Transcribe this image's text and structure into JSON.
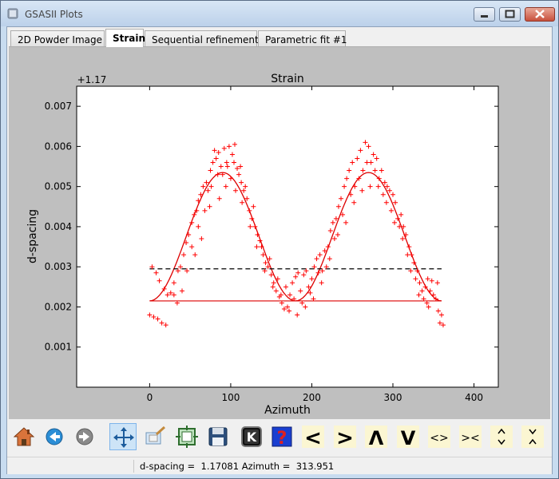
{
  "window": {
    "title": "GSASII Plots"
  },
  "tabs": [
    {
      "label": "2D Powder Image",
      "active": false
    },
    {
      "label": "Strain",
      "active": true
    },
    {
      "label": "Sequential refinement",
      "active": false
    },
    {
      "label": "Parametric fit #1",
      "active": false
    }
  ],
  "chart_data": {
    "type": "scatter",
    "title": "Strain",
    "xlabel": "Azimuth",
    "ylabel": "d-spacing",
    "offset_label": "+1.17",
    "xlim": [
      -90,
      430
    ],
    "ylim": [
      0.0,
      0.0075
    ],
    "x_ticks": [
      0,
      100,
      200,
      300,
      400
    ],
    "y_ticks": [
      0.001,
      0.002,
      0.003,
      0.004,
      0.005,
      0.006,
      0.007
    ],
    "x_tick_labels": [
      "0",
      "100",
      "200",
      "300",
      "400"
    ],
    "y_tick_labels": [
      "0.001",
      "0.002",
      "0.003",
      "0.004",
      "0.005",
      "0.006",
      "0.007"
    ],
    "grid": false,
    "colors": {
      "points": "#ff0000",
      "fit": "#dd0000",
      "reference": "#000000"
    },
    "series": [
      {
        "kind": "points",
        "marker": "+",
        "points": [
          [
            0,
            0.0018
          ],
          [
            5,
            0.00175
          ],
          [
            10,
            0.0017
          ],
          [
            15,
            0.0016
          ],
          [
            20,
            0.00155
          ],
          [
            3,
            0.003
          ],
          [
            8,
            0.00285
          ],
          [
            12,
            0.00265
          ],
          [
            18,
            0.00245
          ],
          [
            22,
            0.0023
          ],
          [
            26,
            0.00235
          ],
          [
            30,
            0.0026
          ],
          [
            35,
            0.0029
          ],
          [
            38,
            0.003
          ],
          [
            42,
            0.0033
          ],
          [
            45,
            0.0036
          ],
          [
            48,
            0.0038
          ],
          [
            52,
            0.0041
          ],
          [
            55,
            0.0043
          ],
          [
            58,
            0.0044
          ],
          [
            60,
            0.00465
          ],
          [
            63,
            0.0048
          ],
          [
            66,
            0.005
          ],
          [
            70,
            0.0051
          ],
          [
            72,
            0.0049
          ],
          [
            75,
            0.0054
          ],
          [
            78,
            0.0056
          ],
          [
            80,
            0.0059
          ],
          [
            82,
            0.0057
          ],
          [
            85,
            0.00585
          ],
          [
            88,
            0.0055
          ],
          [
            90,
            0.0053
          ],
          [
            92,
            0.00595
          ],
          [
            95,
            0.0056
          ],
          [
            98,
            0.006
          ],
          [
            100,
            0.0052
          ],
          [
            102,
            0.0058
          ],
          [
            105,
            0.00605
          ],
          [
            108,
            0.00545
          ],
          [
            110,
            0.0053
          ],
          [
            113,
            0.0051
          ],
          [
            116,
            0.0049
          ],
          [
            120,
            0.0047
          ],
          [
            123,
            0.0044
          ],
          [
            126,
            0.0042
          ],
          [
            130,
            0.004
          ],
          [
            133,
            0.0038
          ],
          [
            136,
            0.00365
          ],
          [
            140,
            0.0033
          ],
          [
            143,
            0.0031
          ],
          [
            146,
            0.003
          ],
          [
            150,
            0.0028
          ],
          [
            153,
            0.0026
          ],
          [
            156,
            0.0024
          ],
          [
            160,
            0.00225
          ],
          [
            163,
            0.0021
          ],
          [
            166,
            0.00195
          ],
          [
            170,
            0.002
          ],
          [
            173,
            0.0023
          ],
          [
            176,
            0.0026
          ],
          [
            180,
            0.00275
          ],
          [
            183,
            0.00285
          ],
          [
            186,
            0.0024
          ],
          [
            190,
            0.0028
          ],
          [
            193,
            0.0029
          ],
          [
            196,
            0.0025
          ],
          [
            200,
            0.0027
          ],
          [
            203,
            0.003
          ],
          [
            206,
            0.0032
          ],
          [
            210,
            0.0033
          ],
          [
            213,
            0.0029
          ],
          [
            216,
            0.0034
          ],
          [
            220,
            0.0035
          ],
          [
            223,
            0.0039
          ],
          [
            226,
            0.0041
          ],
          [
            230,
            0.0042
          ],
          [
            233,
            0.0045
          ],
          [
            236,
            0.0047
          ],
          [
            240,
            0.005
          ],
          [
            243,
            0.0052
          ],
          [
            246,
            0.0054
          ],
          [
            250,
            0.0056
          ],
          [
            253,
            0.005
          ],
          [
            256,
            0.0057
          ],
          [
            260,
            0.0059
          ],
          [
            263,
            0.0054
          ],
          [
            266,
            0.0061
          ],
          [
            270,
            0.006
          ],
          [
            273,
            0.0056
          ],
          [
            276,
            0.0058
          ],
          [
            280,
            0.0057
          ],
          [
            283,
            0.0052
          ],
          [
            286,
            0.0054
          ],
          [
            290,
            0.0051
          ],
          [
            293,
            0.005
          ],
          [
            296,
            0.0049
          ],
          [
            300,
            0.0048
          ],
          [
            303,
            0.0046
          ],
          [
            306,
            0.0042
          ],
          [
            310,
            0.0043
          ],
          [
            313,
            0.004
          ],
          [
            316,
            0.0038
          ],
          [
            320,
            0.0035
          ],
          [
            323,
            0.0033
          ],
          [
            326,
            0.0031
          ],
          [
            330,
            0.0029
          ],
          [
            333,
            0.0026
          ],
          [
            336,
            0.0024
          ],
          [
            340,
            0.0025
          ],
          [
            343,
            0.0027
          ],
          [
            346,
            0.0024
          ],
          [
            350,
            0.0023
          ],
          [
            353,
            0.0022
          ],
          [
            356,
            0.0019
          ],
          [
            360,
            0.0018
          ],
          [
            358,
            0.0016
          ],
          [
            362,
            0.00155
          ],
          [
            355,
            0.0026
          ],
          [
            348,
            0.00265
          ],
          [
            46,
            0.0029
          ],
          [
            52,
            0.0035
          ],
          [
            60,
            0.004
          ],
          [
            68,
            0.0044
          ],
          [
            76,
            0.005
          ],
          [
            84,
            0.0053
          ],
          [
            96,
            0.0055
          ],
          [
            104,
            0.0056
          ],
          [
            112,
            0.0055
          ],
          [
            118,
            0.005
          ],
          [
            128,
            0.0045
          ],
          [
            138,
            0.0035
          ],
          [
            148,
            0.0032
          ],
          [
            158,
            0.0027
          ],
          [
            168,
            0.0025
          ],
          [
            178,
            0.0022
          ],
          [
            188,
            0.0021
          ],
          [
            198,
            0.00235
          ],
          [
            208,
            0.00285
          ],
          [
            218,
            0.003
          ],
          [
            228,
            0.0037
          ],
          [
            238,
            0.0043
          ],
          [
            248,
            0.0048
          ],
          [
            258,
            0.0052
          ],
          [
            268,
            0.0056
          ],
          [
            278,
            0.0054
          ],
          [
            288,
            0.0048
          ],
          [
            298,
            0.0044
          ],
          [
            308,
            0.004
          ],
          [
            318,
            0.0033
          ],
          [
            328,
            0.0027
          ],
          [
            338,
            0.0022
          ],
          [
            344,
            0.002
          ],
          [
            30,
            0.0023
          ],
          [
            34,
            0.0021
          ],
          [
            40,
            0.0024
          ],
          [
            56,
            0.0033
          ],
          [
            64,
            0.0037
          ],
          [
            74,
            0.0045
          ],
          [
            86,
            0.0047
          ],
          [
            94,
            0.005
          ],
          [
            106,
            0.0049
          ],
          [
            114,
            0.0046
          ],
          [
            124,
            0.004
          ],
          [
            132,
            0.0035
          ],
          [
            142,
            0.0029
          ],
          [
            152,
            0.0025
          ],
          [
            162,
            0.0023
          ],
          [
            172,
            0.0019
          ],
          [
            182,
            0.0018
          ],
          [
            192,
            0.002
          ],
          [
            202,
            0.0022
          ],
          [
            212,
            0.0026
          ],
          [
            222,
            0.0032
          ],
          [
            232,
            0.0038
          ],
          [
            242,
            0.0041
          ],
          [
            252,
            0.0046
          ],
          [
            262,
            0.0049
          ],
          [
            272,
            0.005
          ],
          [
            282,
            0.005
          ],
          [
            292,
            0.0046
          ],
          [
            302,
            0.0041
          ],
          [
            312,
            0.0037
          ],
          [
            322,
            0.0029
          ],
          [
            332,
            0.0023
          ],
          [
            342,
            0.0021
          ]
        ]
      },
      {
        "kind": "fit",
        "style": "solid",
        "amplitude": 0.0032,
        "base": 0.00215,
        "x_range": [
          0,
          360
        ]
      },
      {
        "kind": "hline",
        "style": "solid",
        "y": 0.00215,
        "x_range": [
          0,
          360
        ]
      },
      {
        "kind": "hline",
        "style": "dashed",
        "y": 0.00295,
        "x_range": [
          0,
          360
        ]
      }
    ]
  },
  "toolbar": {
    "buttons": [
      {
        "icon": "home-icon",
        "active": false
      },
      {
        "icon": "back-arrow-icon",
        "active": false
      },
      {
        "icon": "forward-arrow-icon",
        "active": false
      },
      {
        "icon": "pan-icon",
        "active": true
      },
      {
        "icon": "zoom-icon",
        "active": false
      },
      {
        "icon": "configure-subplots-icon",
        "active": false
      },
      {
        "icon": "save-icon",
        "active": false
      },
      {
        "icon": "key-icon",
        "glyph": "K",
        "active": false
      },
      {
        "icon": "help-icon",
        "glyph": "?",
        "active": false
      },
      {
        "icon": "shift-left-icon",
        "glyph": "<",
        "active": false
      },
      {
        "icon": "shift-right-icon",
        "glyph": ">",
        "active": false
      },
      {
        "icon": "shift-up-icon",
        "glyph": "Λ",
        "active": false
      },
      {
        "icon": "shift-down-icon",
        "glyph": "V",
        "active": false
      },
      {
        "icon": "expand-horizontal-icon",
        "glyph": "<>",
        "active": false
      },
      {
        "icon": "shrink-horizontal-icon",
        "glyph": "><",
        "active": false
      },
      {
        "icon": "expand-vertical-icon",
        "active": false
      },
      {
        "icon": "shrink-vertical-icon",
        "active": false
      }
    ]
  },
  "status": {
    "text": "d-spacing =  1.17081 Azimuth =  313.951"
  }
}
